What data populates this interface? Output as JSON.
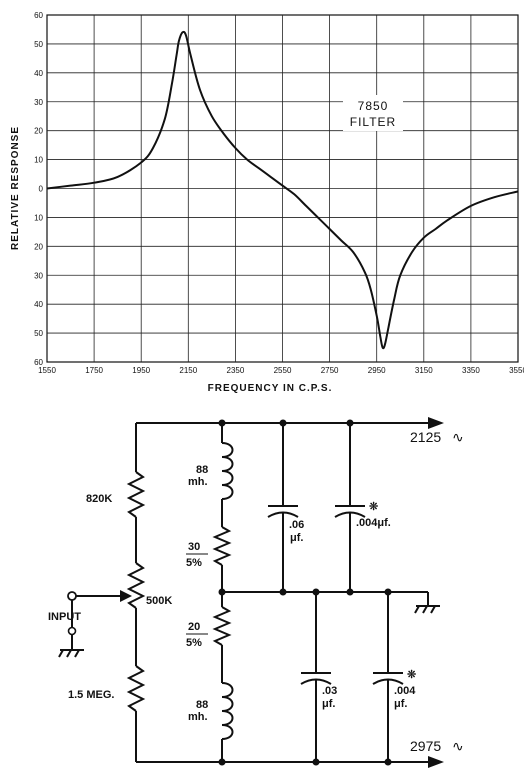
{
  "chart_data": {
    "type": "line",
    "ylabel": "RELATIVE RESPONSE",
    "xlabel": "FREQUENCY IN C.P.S.",
    "annotation": [
      "7850",
      "FILTER"
    ],
    "x_ticks": [
      "1550",
      "1750",
      "1950",
      "2150",
      "2350",
      "2550",
      "2750",
      "2950",
      "3150",
      "3350",
      "3550"
    ],
    "y_ticks": [
      "60",
      "50",
      "40",
      "30",
      "20",
      "10",
      "0",
      "10",
      "20",
      "30",
      "40",
      "50",
      "60"
    ],
    "xlim": [
      1550,
      3550
    ],
    "ylim": [
      -60,
      60
    ],
    "grid": true,
    "series": [
      {
        "x": [
          1550,
          1650,
          1750,
          1850,
          1950,
          2000,
          2050,
          2080,
          2100,
          2110,
          2125,
          2140,
          2160,
          2200,
          2250,
          2300,
          2350,
          2400,
          2450,
          2500,
          2550,
          2600,
          2650,
          2700,
          2750,
          2800,
          2850,
          2900,
          2925,
          2950,
          2965,
          2975,
          2985,
          3000,
          3025,
          3050,
          3100,
          3150,
          3200,
          3250,
          3350,
          3450,
          3550
        ],
        "y": [
          0,
          1,
          2,
          4,
          9,
          14,
          24,
          36,
          46,
          51,
          54,
          53,
          46,
          34,
          25,
          19,
          14,
          10,
          7,
          4,
          1,
          -2,
          -6,
          -10,
          -14,
          -18,
          -22,
          -29,
          -35,
          -44,
          -51,
          -55,
          -54,
          -48,
          -38,
          -30,
          -22,
          -17,
          -14,
          -11,
          -6,
          -3,
          -1
        ]
      }
    ]
  },
  "circuit": {
    "label_2125": "2125",
    "label_2975": "2975",
    "tilde": "∿",
    "r_820k": "820K",
    "pot_500k": "500K",
    "input": "INPUT",
    "r_15meg": "1.5 MEG.",
    "l1_val": "88",
    "l1_unit": "mh.",
    "r30_val": "30",
    "r30_tol": "5%",
    "c1_val": ".06",
    "c1_unit": "μf.",
    "c2_val": ".004μf.",
    "asterisk": "❊",
    "r20_val": "20",
    "r20_tol": "5%",
    "l2_val": "88",
    "l2_unit": "mh.",
    "c3_val": ".03",
    "c3_unit": "μf.",
    "c4_val": ".004",
    "c4_unit": "μf."
  }
}
